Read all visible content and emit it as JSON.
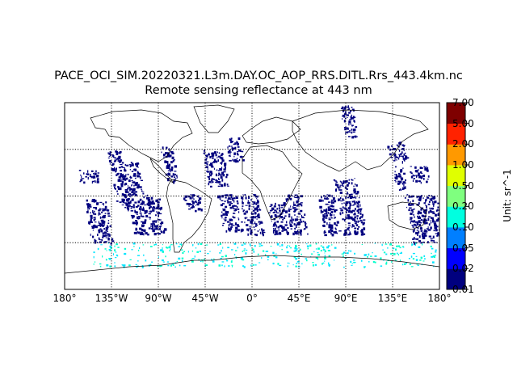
{
  "title": {
    "line1": "PACE_OCI_SIM.20220321.L3m.DAY.OC_AOP_RRS.DITL.Rrs_443.4km.nc",
    "line2": "Remote sensing reflectance at 443 nm"
  },
  "map": {
    "projection": "equirectangular",
    "lon_range": [
      -180,
      180
    ],
    "lat_range": [
      -90,
      90
    ],
    "meridians": [
      -180,
      -135,
      -90,
      -45,
      0,
      45,
      90,
      135,
      180
    ],
    "parallels": [
      -45,
      0,
      45
    ],
    "grid_style": "dotted",
    "x_tick_labels": [
      "180°",
      "135°W",
      "90°W",
      "45°W",
      "0°",
      "45°E",
      "90°E",
      "135°E",
      "180°"
    ],
    "coastline_color": "#000000",
    "data_colors": {
      "low": "#00007f",
      "mid": "#00e5ff",
      "high": "#00ffcc"
    }
  },
  "colorbar": {
    "label": "Unit: sr^-1",
    "ticks": [
      "0.01",
      "0.02",
      "0.05",
      "0.10",
      "0.20",
      "0.50",
      "1.00",
      "2.00",
      "5.00",
      "7.00"
    ],
    "colors": [
      "#00007f",
      "#0000ff",
      "#007fff",
      "#00ffe0",
      "#7fff7f",
      "#e0ff00",
      "#ff9900",
      "#ff2200",
      "#7f0000"
    ]
  }
}
